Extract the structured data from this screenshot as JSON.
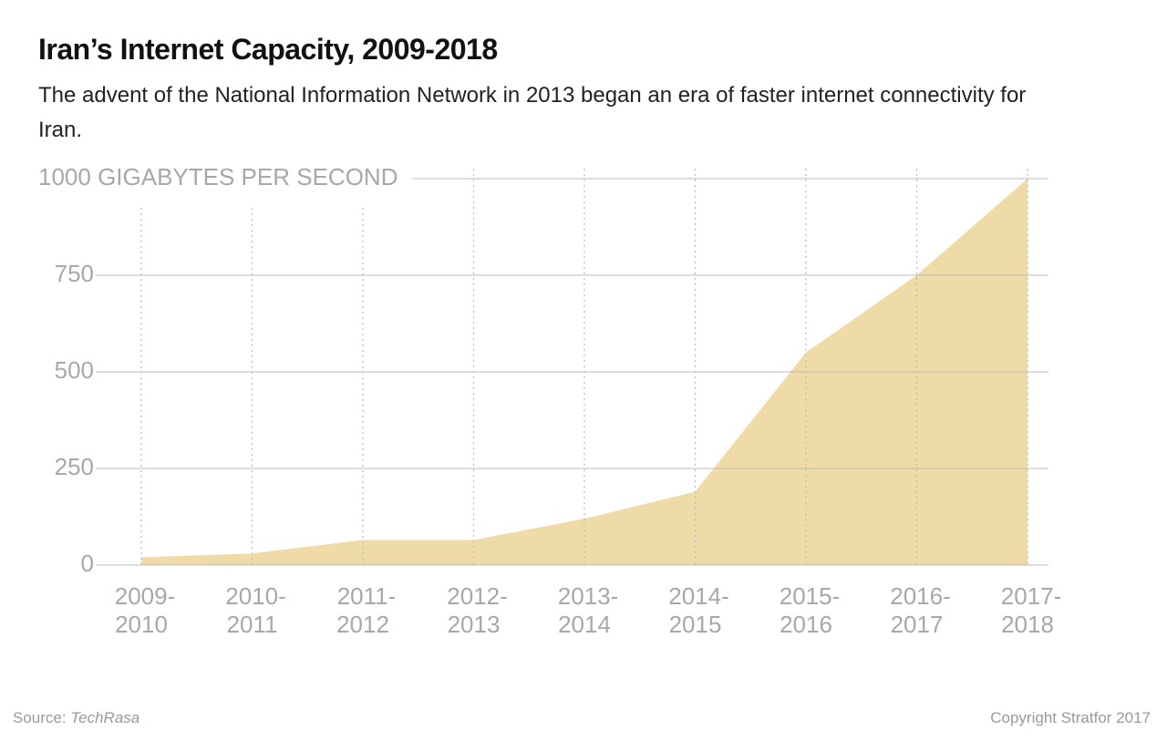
{
  "chart_data": {
    "type": "area",
    "title": "Iran’s Internet Capacity, 2009-2018",
    "subtitle": "The advent of the National Information Network in 2013 began an era of faster internet connectivity for Iran.",
    "categories": [
      "2009-2010",
      "2010-2011",
      "2011-2012",
      "2012-2013",
      "2013-2014",
      "2014-2015",
      "2015-2016",
      "2016-2017",
      "2017-2018"
    ],
    "values": [
      20,
      30,
      65,
      65,
      120,
      190,
      550,
      750,
      1000
    ],
    "color": "#efdba8",
    "ylim": [
      0,
      1000
    ],
    "yticks": [
      0,
      250,
      500,
      750,
      {
        "value": 1000,
        "label": "1000 GIGABYTES PER SECOND"
      }
    ],
    "grid": true,
    "source": {
      "label": "Source:",
      "name": "TechRasa"
    },
    "copyright": "Copyright Stratfor 2017"
  }
}
